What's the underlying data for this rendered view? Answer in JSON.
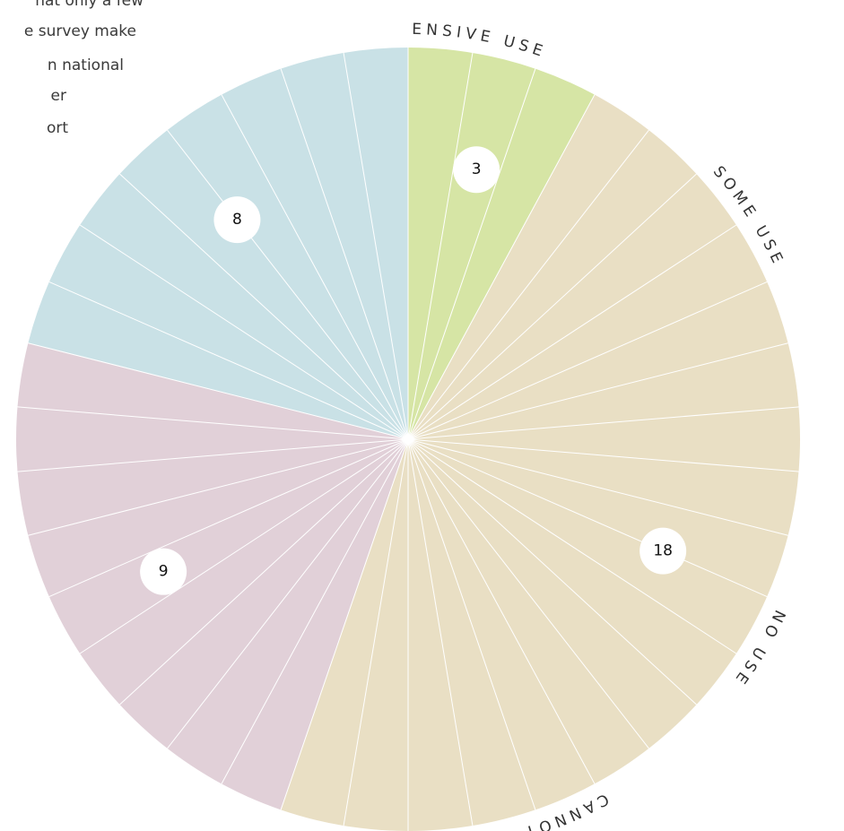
{
  "note_lines": [
    "hat only a few",
    "e survey make",
    "n national",
    "er",
    "ort"
  ],
  "chart_data": {
    "type": "pie",
    "categories": [
      "EXTENSIVE USE",
      "SOME USE",
      "NO USE",
      "CANNOT SAY"
    ],
    "values": [
      3,
      18,
      9,
      8
    ],
    "colors": [
      "#d6e5a5",
      "#e9dfc4",
      "#e1d0d8",
      "#c9e1e6"
    ]
  }
}
